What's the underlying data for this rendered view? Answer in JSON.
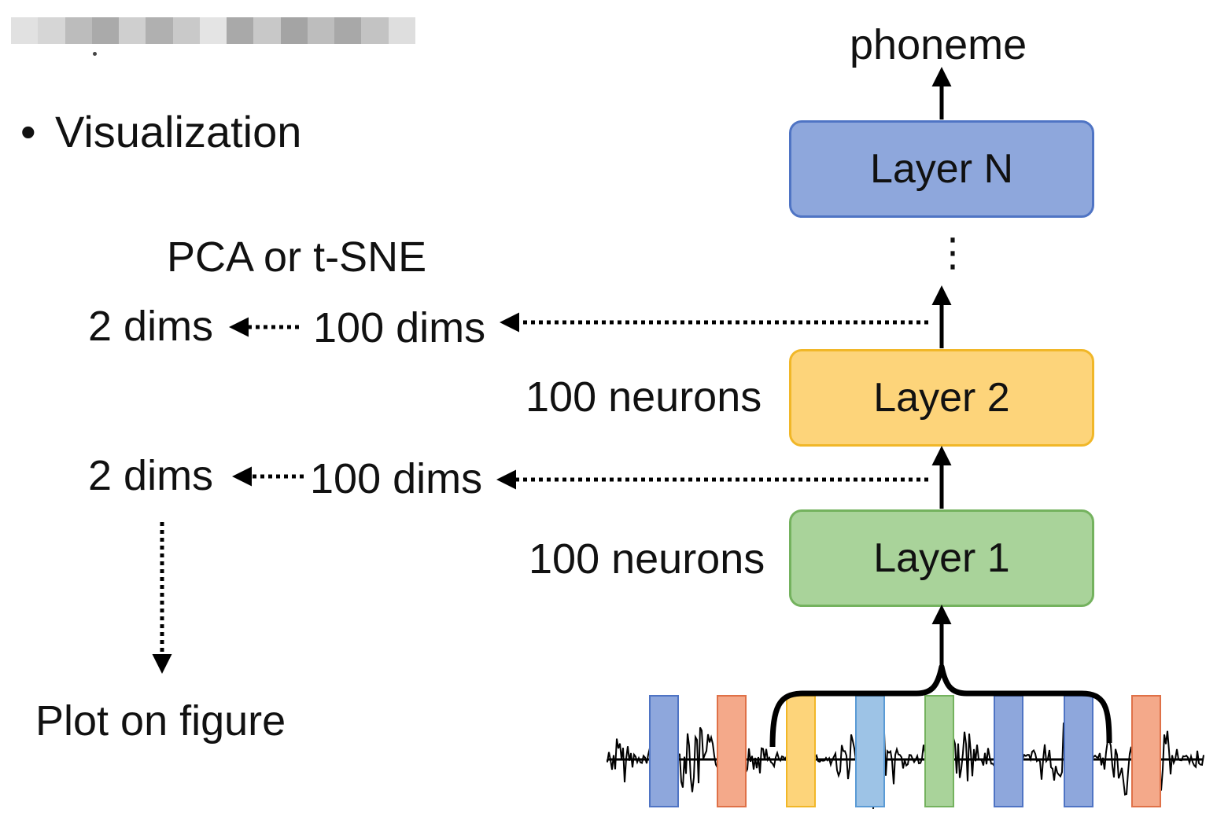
{
  "header": {
    "blurred_strip": [
      "#e1e1e1",
      "#d6d6d6",
      "#bcbcbc",
      "#aaaaaa",
      "#cfcfcf",
      "#b0b0b0",
      "#c9c9c9",
      "#e4e4e4",
      "#a9a9a9",
      "#c8c8c8",
      "#a4a4a4",
      "#bdbdbd",
      "#a8a8a8",
      "#c3c3c3",
      "#dedede"
    ]
  },
  "slide": {
    "bullet": "•",
    "heading": "Visualization"
  },
  "left_panel": {
    "method_label": "PCA or t-SNE",
    "row_upper": {
      "low_dims": "2 dims",
      "high_dims": "100 dims"
    },
    "row_lower": {
      "low_dims": "2 dims",
      "high_dims": "100 dims"
    },
    "result_label": "Plot on figure"
  },
  "network": {
    "output_label": "phoneme",
    "ellipsis": "⋮",
    "layers": [
      {
        "label": "Layer N",
        "fill": "#8ea7dc",
        "stroke": "#4f74c4"
      },
      {
        "label": "Layer 2",
        "fill": "#fdd47a",
        "stroke": "#f1b728"
      },
      {
        "label": "Layer 1",
        "fill": "#a9d39a",
        "stroke": "#74b25e"
      }
    ],
    "neuron_labels": [
      "100 neurons",
      "100 neurons"
    ]
  },
  "input": {
    "frames": [
      {
        "name": "frame-blue-1",
        "color": "#8ea7dc",
        "stroke": "#4f74c4"
      },
      {
        "name": "frame-orange-1",
        "color": "#f4a98a",
        "stroke": "#df7148"
      },
      {
        "name": "frame-yellow",
        "color": "#fdd47a",
        "stroke": "#f1b728"
      },
      {
        "name": "frame-lightblue",
        "color": "#9dc3e6",
        "stroke": "#5b9bd5"
      },
      {
        "name": "frame-green",
        "color": "#a9d39a",
        "stroke": "#74b25e"
      },
      {
        "name": "frame-blue-2",
        "color": "#8ea7dc",
        "stroke": "#4f74c4"
      },
      {
        "name": "frame-blue-3",
        "color": "#8ea7dc",
        "stroke": "#4f74c4"
      },
      {
        "name": "frame-orange-2",
        "color": "#f4a98a",
        "stroke": "#df7148"
      }
    ]
  }
}
